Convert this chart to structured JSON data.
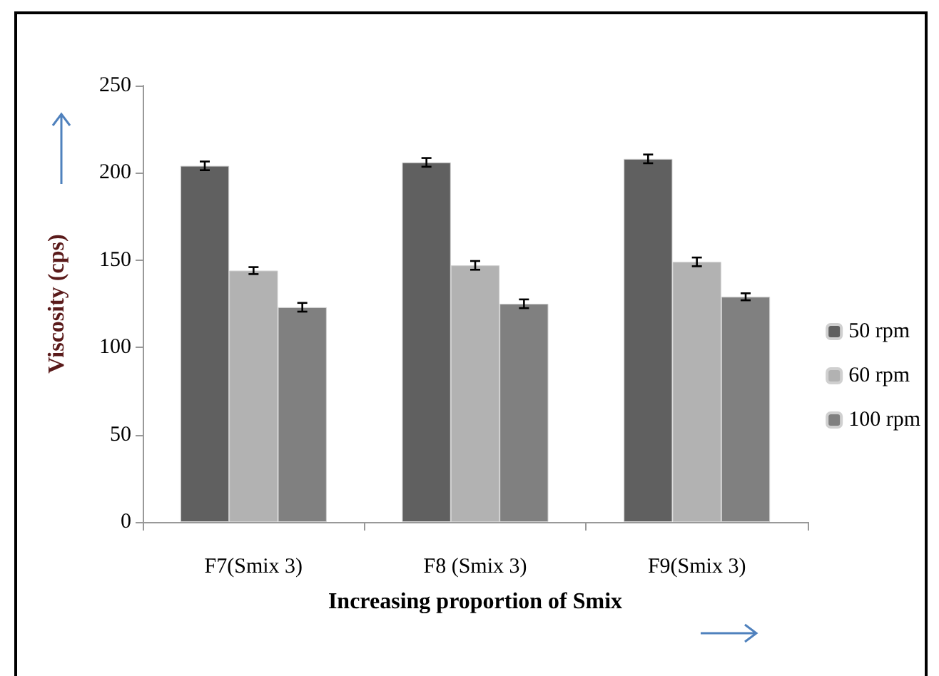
{
  "chart_data": {
    "type": "bar",
    "xlabel": "Increasing proportion of Smix",
    "ylabel": "Viscosity (cps)",
    "categories": [
      "F7(Smix 3)",
      "F8 (Smix 3)",
      "F9(Smix 3)"
    ],
    "series": [
      {
        "name": "50 rpm",
        "color": "#606060",
        "values": [
          204,
          206,
          208
        ],
        "errors": [
          2.5,
          2.5,
          2.5
        ]
      },
      {
        "name": "60 rpm",
        "color": "#b2b2b2",
        "values": [
          144,
          147,
          149
        ],
        "errors": [
          2,
          2.5,
          2.5
        ]
      },
      {
        "name": "100 rpm",
        "color": "#808080",
        "values": [
          123,
          125,
          129
        ],
        "errors": [
          2.5,
          2.5,
          2
        ]
      }
    ],
    "ylim": [
      0,
      250
    ],
    "yticks": [
      0,
      50,
      100,
      150,
      200,
      250
    ],
    "grid": false,
    "legend": "right"
  }
}
